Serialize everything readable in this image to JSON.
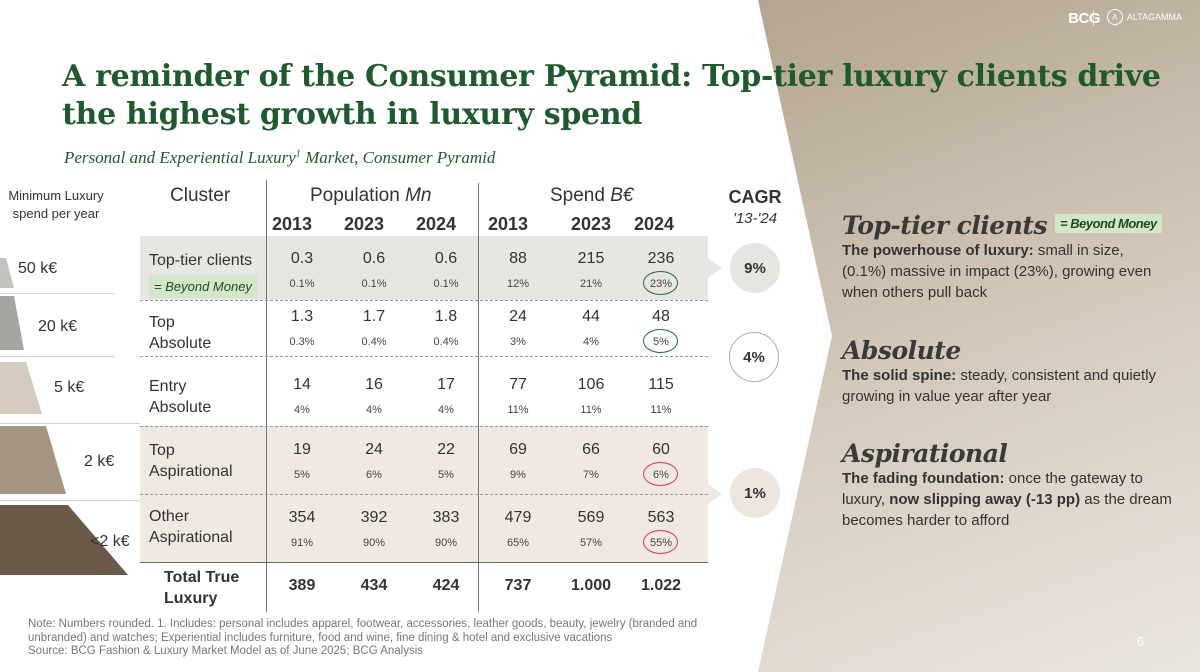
{
  "brand": {
    "logo_bcg": "BCG",
    "logo_altagamma": "ALTAGAMMA",
    "logo_altagamma_mark": "A"
  },
  "title": "A reminder of the Consumer Pyramid: Top-tier luxury clients drive the highest growth in luxury spend",
  "subtitle": {
    "text": "Personal and Experiential Luxury",
    "sup": "1",
    "suffix": " Market, Consumer Pyramid"
  },
  "pyramid": {
    "header": "Minimum Luxury spend per year",
    "levels": [
      {
        "label": "50 k€",
        "color": "#c4c2bf"
      },
      {
        "label": "20 k€",
        "color": "#a7a5a2"
      },
      {
        "label": "5 k€",
        "color": "#d4cabd"
      },
      {
        "label": "2 k€",
        "color": "#a59481"
      },
      {
        "label": "<2 k€",
        "color": "#6b5a4a"
      }
    ]
  },
  "table": {
    "cluster_header": "Cluster",
    "population_header": "Population",
    "population_unit": "Mn",
    "spend_header": "Spend",
    "spend_unit": "B€",
    "years": [
      "2013",
      "2023",
      "2024"
    ],
    "rows": [
      {
        "name": "Top-tier clients",
        "tag": "= Beyond Money",
        "population": [
          "0.3",
          "0.6",
          "0.6"
        ],
        "population_pct": [
          "0.1%",
          "0.1%",
          "0.1%"
        ],
        "spend": [
          "88",
          "215",
          "236"
        ],
        "spend_pct": [
          "12%",
          "21%",
          "23%"
        ]
      },
      {
        "name": "Top Absolute",
        "name_line1": "Top",
        "name_line2": "Absolute",
        "population": [
          "1.3",
          "1.7",
          "1.8"
        ],
        "population_pct": [
          "0.3%",
          "0.4%",
          "0.4%"
        ],
        "spend": [
          "24",
          "44",
          "48"
        ],
        "spend_pct": [
          "3%",
          "4%",
          "5%"
        ]
      },
      {
        "name_line1": "Entry",
        "name_line2": "Absolute",
        "population": [
          "14",
          "16",
          "17"
        ],
        "population_pct": [
          "4%",
          "4%",
          "4%"
        ],
        "spend": [
          "77",
          "106",
          "115"
        ],
        "spend_pct": [
          "11%",
          "11%",
          "11%"
        ]
      },
      {
        "name_line1": "Top",
        "name_line2": "Aspirational",
        "population": [
          "19",
          "24",
          "22"
        ],
        "population_pct": [
          "5%",
          "6%",
          "5%"
        ],
        "spend": [
          "69",
          "66",
          "60"
        ],
        "spend_pct": [
          "9%",
          "7%",
          "6%"
        ]
      },
      {
        "name_line1": "Other",
        "name_line2": "Aspirational",
        "population": [
          "354",
          "392",
          "383"
        ],
        "population_pct": [
          "91%",
          "90%",
          "90%"
        ],
        "spend": [
          "479",
          "569",
          "563"
        ],
        "spend_pct": [
          "65%",
          "57%",
          "55%"
        ]
      }
    ],
    "total": {
      "name_line1": "Total True",
      "name_line2": "Luxury",
      "population": [
        "389",
        "434",
        "424"
      ],
      "spend": [
        "737",
        "1.000",
        "1.022"
      ]
    }
  },
  "cagr": {
    "header": "CAGR",
    "period": "'13-'24",
    "values": [
      "9%",
      "4%",
      "1%"
    ]
  },
  "segments": [
    {
      "heading": "Top-tier clients",
      "tag": "= Beyond Money",
      "lead": "The powerhouse of luxury:",
      "body": " small in size, (0.1%) massive in impact (23%), growing even when others pull back"
    },
    {
      "heading": "Absolute",
      "lead": "The solid spine:",
      "body": " steady, consistent and quietly growing in value year after year"
    },
    {
      "heading": "Aspirational",
      "lead": "The fading foundation:",
      "body_pre": " once the gateway to luxury, ",
      "emph": "now slipping away (-13 pp)",
      "body_post": " as the dream becomes harder to afford"
    }
  ],
  "footnote": {
    "line1": "Note: Numbers rounded. 1. Includes: personal includes apparel, footwear, accessories, leather goods, beauty, jewelry (branded and unbranded) and watches; Experiential includes furniture, food and wine, fine dining & hotel and exclusive vacations",
    "line2": "Source: BCG Fashion & Luxury Market Model as of June 2025; BCG Analysis"
  },
  "page_number": "6"
}
